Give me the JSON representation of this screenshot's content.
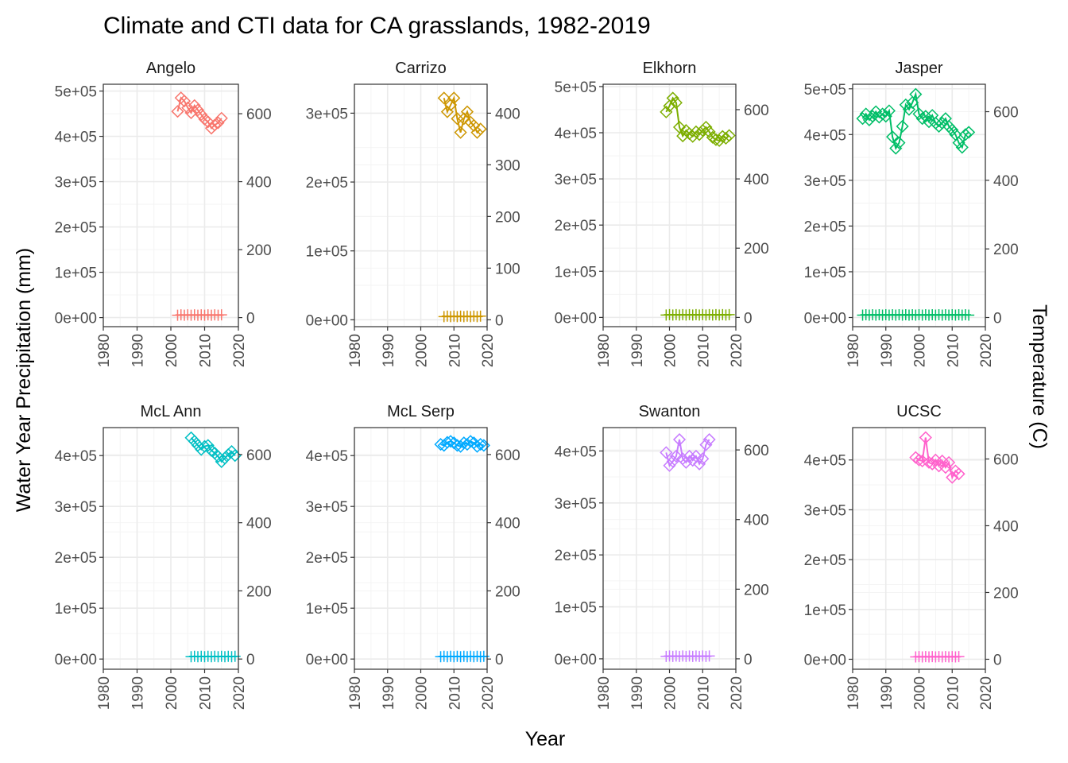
{
  "chart_data": {
    "type": "line",
    "title": "Climate and CTI data for CA grasslands, 1982-2019",
    "xlabel": "Year",
    "ylabel": "Water Year Precipitation (mm)",
    "y2label": "Temperature (C)",
    "x_ticks": [
      1980,
      1990,
      2000,
      2010,
      2020
    ],
    "xlim": [
      1980,
      2020
    ],
    "grid": true,
    "series_styles": [
      {
        "variable": "precipitation",
        "marker": "diamond",
        "line": true
      },
      {
        "variable": "temperature",
        "marker": "plus",
        "line": true
      }
    ],
    "panels": [
      {
        "name": "Angelo",
        "color": "#F8766D",
        "ylim": [
          -20000,
          515000
        ],
        "y_ticks": [
          0,
          100000,
          200000,
          300000,
          400000,
          500000
        ],
        "y_tick_labels": [
          "0e+00",
          "1e+05",
          "2e+05",
          "3e+05",
          "4e+05",
          "5e+05"
        ],
        "y2_ticks": [
          0,
          200,
          400,
          600
        ],
        "x": [
          2002,
          2003,
          2004,
          2005,
          2006,
          2007,
          2008,
          2009,
          2010,
          2011,
          2012,
          2013,
          2014,
          2015
        ],
        "diamonds": [
          455000,
          485000,
          478000,
          463000,
          452000,
          468000,
          458000,
          448000,
          438000,
          432000,
          418000,
          425000,
          430000,
          440000
        ],
        "temperature": [
          7,
          8,
          7,
          8,
          7,
          8,
          7,
          8,
          7,
          8,
          7,
          8,
          7,
          8
        ]
      },
      {
        "name": "Carrizo",
        "color": "#CD9600",
        "ylim": [
          -10000,
          342000
        ],
        "y_ticks": [
          0,
          100000,
          200000,
          300000
        ],
        "y_tick_labels": [
          "0e+00",
          "1e+05",
          "2e+05",
          "3e+05"
        ],
        "y2_ticks": [
          0,
          100,
          200,
          300,
          400
        ],
        "x": [
          2007,
          2008,
          2009,
          2010,
          2011,
          2012,
          2013,
          2014,
          2015,
          2016,
          2017,
          2018
        ],
        "diamonds": [
          322000,
          302000,
          312000,
          322000,
          292000,
          272000,
          292000,
          302000,
          287000,
          282000,
          272000,
          277000
        ],
        "temperature": [
          6,
          7,
          6,
          7,
          6,
          7,
          6,
          7,
          6,
          7,
          6,
          7
        ]
      },
      {
        "name": "Elkhorn",
        "color": "#7CAE00",
        "ylim": [
          -20000,
          505000
        ],
        "y_ticks": [
          0,
          100000,
          200000,
          300000,
          400000,
          500000
        ],
        "y_tick_labels": [
          "0e+00",
          "1e+05",
          "2e+05",
          "3e+05",
          "4e+05",
          "5e+05"
        ],
        "y2_ticks": [
          0,
          200,
          400,
          600
        ],
        "x": [
          1999,
          2000,
          2001,
          2002,
          2003,
          2004,
          2005,
          2006,
          2007,
          2008,
          2009,
          2010,
          2011,
          2012,
          2013,
          2014,
          2015,
          2016,
          2017,
          2018
        ],
        "diamonds": [
          445000,
          458000,
          475000,
          465000,
          412000,
          393000,
          405000,
          398000,
          392000,
          402000,
          396000,
          405000,
          412000,
          402000,
          390000,
          385000,
          383000,
          392000,
          388000,
          394000
        ],
        "temperature": [
          7,
          8,
          7,
          8,
          7,
          8,
          7,
          8,
          7,
          8,
          7,
          8,
          7,
          8,
          7,
          8,
          7,
          8,
          7,
          8
        ]
      },
      {
        "name": "Jasper",
        "color": "#00BE67",
        "ylim": [
          -20000,
          510000
        ],
        "y_ticks": [
          0,
          100000,
          200000,
          300000,
          400000,
          500000
        ],
        "y_tick_labels": [
          "0e+00",
          "1e+05",
          "2e+05",
          "3e+05",
          "4e+05",
          "5e+05"
        ],
        "y2_ticks": [
          0,
          200,
          400,
          600
        ],
        "x": [
          1983,
          1984,
          1985,
          1986,
          1987,
          1988,
          1989,
          1990,
          1991,
          1992,
          1993,
          1994,
          1995,
          1996,
          1997,
          1998,
          1999,
          2000,
          2001,
          2002,
          2003,
          2004,
          2005,
          2006,
          2007,
          2008,
          2009,
          2010,
          2011,
          2012,
          2013,
          2014,
          2015
        ],
        "diamonds": [
          435000,
          445000,
          432000,
          440000,
          450000,
          438000,
          445000,
          440000,
          452000,
          395000,
          370000,
          382000,
          418000,
          465000,
          455000,
          470000,
          488000,
          445000,
          435000,
          440000,
          428000,
          442000,
          425000,
          418000,
          425000,
          435000,
          418000,
          410000,
          400000,
          382000,
          372000,
          400000,
          405000
        ],
        "temperature": [
          7,
          8,
          7,
          8,
          7,
          8,
          7,
          8,
          7,
          8,
          7,
          8,
          7,
          8,
          7,
          8,
          7,
          8,
          7,
          8,
          7,
          8,
          7,
          8,
          7,
          8,
          7,
          8,
          7,
          8,
          7,
          8,
          7
        ]
      },
      {
        "name": "McL Ann",
        "color": "#00BFC4",
        "ylim": [
          -20000,
          455000
        ],
        "y_ticks": [
          0,
          100000,
          200000,
          300000,
          400000
        ],
        "y_tick_labels": [
          "0e+00",
          "1e+05",
          "2e+05",
          "3e+05",
          "4e+05"
        ],
        "y2_ticks": [
          0,
          200,
          400,
          600
        ],
        "x": [
          2006,
          2007,
          2008,
          2009,
          2010,
          2011,
          2012,
          2013,
          2014,
          2015,
          2016,
          2017,
          2018,
          2019
        ],
        "diamonds": [
          435000,
          428000,
          420000,
          412000,
          418000,
          420000,
          410000,
          405000,
          398000,
          388000,
          395000,
          402000,
          408000,
          400000
        ],
        "temperature": [
          7,
          8,
          7,
          8,
          7,
          8,
          7,
          8,
          7,
          8,
          7,
          8,
          7,
          8
        ]
      },
      {
        "name": "McL Serp",
        "color": "#00A9FF",
        "ylim": [
          -20000,
          455000
        ],
        "y_ticks": [
          0,
          100000,
          200000,
          300000,
          400000
        ],
        "y_tick_labels": [
          "0e+00",
          "1e+05",
          "2e+05",
          "3e+05",
          "4e+05"
        ],
        "y2_ticks": [
          0,
          200,
          400,
          600
        ],
        "x": [
          2006,
          2007,
          2008,
          2009,
          2010,
          2011,
          2012,
          2013,
          2014,
          2015,
          2016,
          2017,
          2018,
          2019
        ],
        "diamonds": [
          422000,
          420000,
          426000,
          428000,
          425000,
          420000,
          418000,
          425000,
          422000,
          428000,
          425000,
          418000,
          422000,
          420000
        ],
        "temperature": [
          7,
          8,
          7,
          8,
          7,
          8,
          7,
          8,
          7,
          8,
          7,
          8,
          7,
          8
        ]
      },
      {
        "name": "Swanton",
        "color": "#C77CFF",
        "ylim": [
          -20000,
          445000
        ],
        "y_ticks": [
          0,
          100000,
          200000,
          300000,
          400000
        ],
        "y_tick_labels": [
          "0e+00",
          "1e+05",
          "2e+05",
          "3e+05",
          "4e+05"
        ],
        "y2_ticks": [
          0,
          200,
          400,
          600
        ],
        "x": [
          1999,
          2000,
          2001,
          2002,
          2003,
          2004,
          2005,
          2006,
          2007,
          2008,
          2009,
          2010,
          2011,
          2012
        ],
        "diamonds": [
          397000,
          372000,
          380000,
          390000,
          422000,
          385000,
          378000,
          390000,
          382000,
          390000,
          375000,
          385000,
          412000,
          422000
        ],
        "temperature": [
          7,
          8,
          7,
          8,
          7,
          8,
          7,
          8,
          7,
          8,
          7,
          8,
          7,
          8
        ]
      },
      {
        "name": "UCSC",
        "color": "#FF61CC",
        "ylim": [
          -20000,
          465000
        ],
        "y_ticks": [
          0,
          100000,
          200000,
          300000,
          400000
        ],
        "y_tick_labels": [
          "0e+00",
          "1e+05",
          "2e+05",
          "3e+05",
          "4e+05"
        ],
        "y2_ticks": [
          0,
          200,
          400,
          600
        ],
        "x": [
          1999,
          2000,
          2001,
          2002,
          2003,
          2004,
          2005,
          2006,
          2007,
          2008,
          2009,
          2010,
          2011,
          2012
        ],
        "diamonds": [
          405000,
          400000,
          398000,
          445000,
          395000,
          392000,
          400000,
          388000,
          398000,
          385000,
          395000,
          365000,
          378000,
          372000
        ],
        "temperature": [
          7,
          8,
          7,
          8,
          7,
          8,
          7,
          8,
          7,
          8,
          7,
          8,
          7,
          8
        ]
      }
    ]
  }
}
